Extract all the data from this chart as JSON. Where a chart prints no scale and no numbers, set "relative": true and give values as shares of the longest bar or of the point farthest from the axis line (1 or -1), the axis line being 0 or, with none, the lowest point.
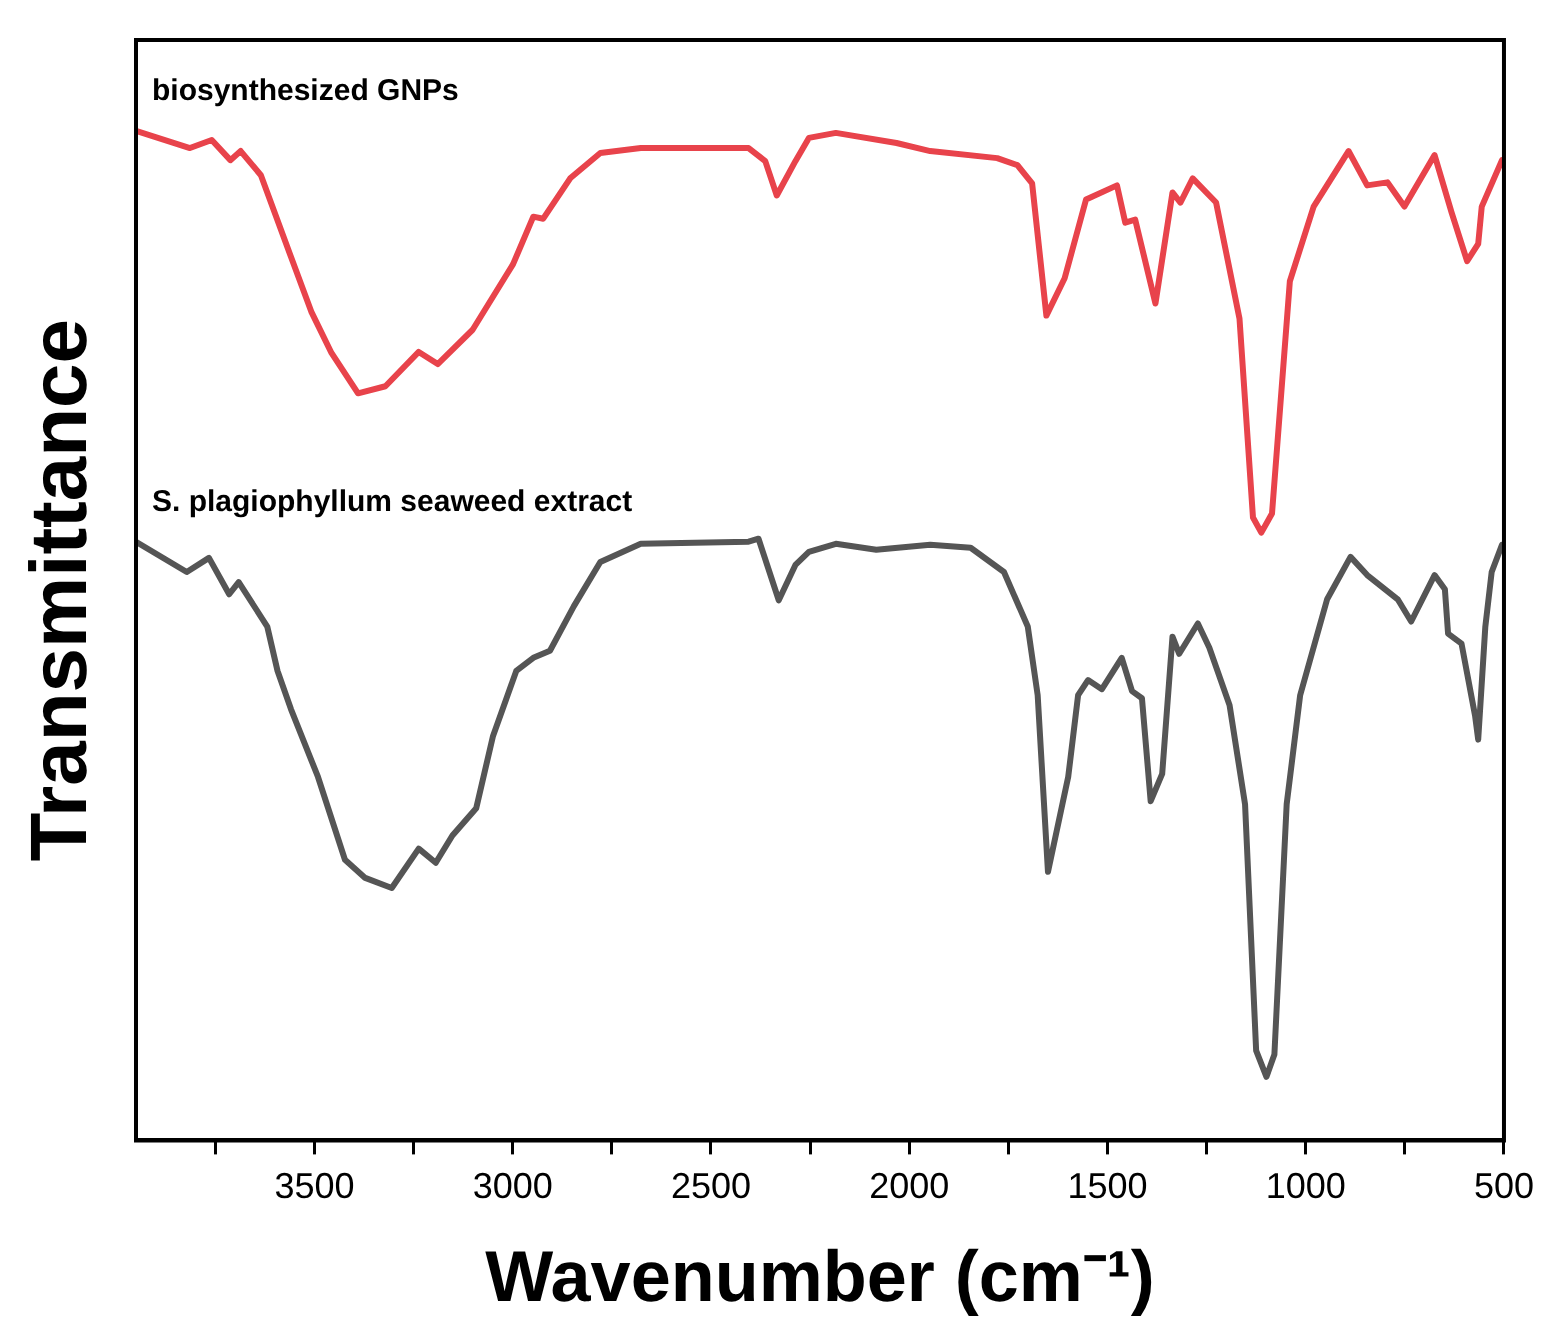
{
  "chart_data": {
    "type": "line",
    "xlabel": "Wavenumber (cm⁻¹)",
    "ylabel": "Transmittance",
    "relative": true,
    "grid": false,
    "legend": false,
    "marker": "none",
    "line_style": "solid",
    "xlim": [
      3950,
      500
    ],
    "xticks": [
      {
        "value": 3750,
        "label": null
      },
      3500,
      {
        "value": 3250,
        "label": null
      },
      3000,
      {
        "value": 2750,
        "label": null
      },
      2500,
      {
        "value": 2250,
        "label": null
      },
      2000,
      {
        "value": 1750,
        "label": null
      },
      1500,
      {
        "value": 1250,
        "label": null
      },
      1000,
      {
        "value": 750,
        "label": null
      },
      500
    ],
    "series": [
      {
        "name": "biosynthesized GNPs",
        "color": "#e8434b",
        "x": [
          3950,
          3814,
          3759,
          3712,
          3686,
          3635,
          3559,
          3508,
          3457,
          3390,
          3321,
          3237,
          3189,
          3101,
          2999,
          2948,
          2923,
          2855,
          2779,
          2677,
          2405,
          2363,
          2334,
          2287,
          2253,
          2185,
          2032,
          1947,
          1778,
          1727,
          1690,
          1654,
          1608,
          1554,
          1476,
          1455,
          1430,
          1379,
          1336,
          1316,
          1285,
          1226,
          1167,
          1133,
          1112,
          1085,
          1040,
          980,
          892,
          845,
          794,
          751,
          675,
          632,
          593,
          565,
          556,
          505
        ],
        "values": [
          1.0,
          0.983,
          0.991,
          0.971,
          0.98,
          0.956,
          0.875,
          0.821,
          0.78,
          0.74,
          0.747,
          0.781,
          0.769,
          0.803,
          0.868,
          0.915,
          0.913,
          0.953,
          0.978,
          0.983,
          0.983,
          0.97,
          0.936,
          0.97,
          0.993,
          0.998,
          0.988,
          0.98,
          0.973,
          0.966,
          0.948,
          0.817,
          0.854,
          0.932,
          0.946,
          0.909,
          0.912,
          0.829,
          0.939,
          0.929,
          0.953,
          0.929,
          0.814,
          0.617,
          0.602,
          0.621,
          0.851,
          0.925,
          0.98,
          0.946,
          0.949,
          0.925,
          0.976,
          0.919,
          0.871,
          0.888,
          0.925,
          0.971
        ]
      },
      {
        "name": "S. plagiophyllum seaweed extract",
        "color": "#555555",
        "x": [
          3950,
          3822,
          3766,
          3715,
          3691,
          3619,
          3593,
          3559,
          3491,
          3423,
          3372,
          3305,
          3237,
          3194,
          3152,
          3092,
          3050,
          2991,
          2948,
          2906,
          2846,
          2779,
          2677,
          2405,
          2380,
          2329,
          2287,
          2253,
          2185,
          2083,
          1947,
          1845,
          1761,
          1701,
          1676,
          1650,
          1599,
          1574,
          1549,
          1514,
          1464,
          1438,
          1413,
          1391,
          1362,
          1336,
          1319,
          1272,
          1243,
          1192,
          1153,
          1125,
          1099,
          1079,
          1048,
          1014,
          946,
          887,
          845,
          768,
          734,
          675,
          649,
          641,
          607,
          573,
          565,
          547,
          531,
          505
        ],
        "values": [
          0.593,
          0.563,
          0.577,
          0.541,
          0.553,
          0.509,
          0.465,
          0.427,
          0.36,
          0.278,
          0.26,
          0.25,
          0.289,
          0.275,
          0.302,
          0.329,
          0.4,
          0.465,
          0.478,
          0.485,
          0.529,
          0.573,
          0.591,
          0.593,
          0.596,
          0.535,
          0.57,
          0.583,
          0.591,
          0.585,
          0.59,
          0.587,
          0.563,
          0.509,
          0.441,
          0.266,
          0.36,
          0.441,
          0.456,
          0.447,
          0.478,
          0.445,
          0.438,
          0.336,
          0.363,
          0.499,
          0.482,
          0.512,
          0.488,
          0.431,
          0.333,
          0.089,
          0.063,
          0.085,
          0.333,
          0.441,
          0.536,
          0.578,
          0.56,
          0.536,
          0.514,
          0.56,
          0.546,
          0.502,
          0.492,
          0.421,
          0.397,
          0.509,
          0.563,
          0.59
        ]
      }
    ]
  }
}
